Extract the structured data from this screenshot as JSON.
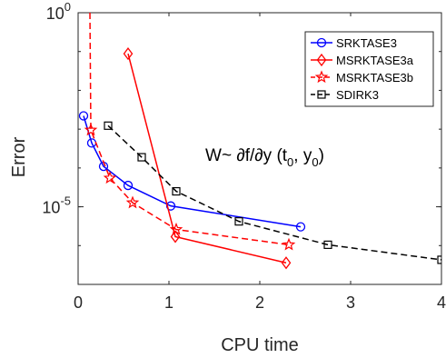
{
  "chart_data": {
    "type": "line",
    "xlabel": "CPU time",
    "ylabel": "Error",
    "xlim": [
      0,
      4
    ],
    "ylim": [
      1e-07,
      1
    ],
    "y_scale": "log",
    "grid": false,
    "legend_placement": "top-right",
    "x_ticks": [
      "0",
      "1",
      "2",
      "3",
      "4"
    ],
    "y_ticks": [
      {
        "base": "10",
        "exp": "0",
        "value": 1
      },
      {
        "base": "10",
        "exp": "-5",
        "value": 1e-05
      }
    ],
    "annotation": {
      "prefix": "W",
      "tilde": "~",
      "body": " ∂f/∂y (t",
      "sub0": "0",
      "mid": ", y",
      "sub1": "0",
      "suffix": ")"
    },
    "series": [
      {
        "name": "SRKTASE3",
        "color": "#0000ff",
        "dash": "solid",
        "marker": "circle",
        "x": [
          0.06,
          0.15,
          0.28,
          0.55,
          1.02,
          2.45
        ],
        "y": [
          0.0022,
          0.00044,
          0.00011,
          3.55e-05,
          1.05e-05,
          3.05e-06
        ]
      },
      {
        "name": "MSRKTASE3a",
        "color": "#ff0000",
        "dash": "solid",
        "marker": "diamond",
        "x": [
          0.55,
          1.07,
          2.29
        ],
        "y": [
          0.088,
          1.7e-06,
          3.6e-07
        ]
      },
      {
        "name": "MSRKTASE3b",
        "color": "#ff0000",
        "dash": "dashed",
        "marker": "star",
        "x": [
          0.13,
          0.14,
          0.35,
          0.6,
          1.08,
          2.32
        ],
        "y": [
          1,
          0.00095,
          5.5e-05,
          1.27e-05,
          2.6e-06,
          1.05e-06
        ]
      },
      {
        "name": "SDIRK3",
        "color": "#000000",
        "dash": "dashed",
        "marker": "square",
        "x": [
          0.33,
          0.7,
          1.08,
          1.77,
          2.75,
          4.0
        ],
        "y": [
          0.00123,
          0.000189,
          2.5e-05,
          4.2e-06,
          1.05e-06,
          4.3e-07
        ]
      }
    ]
  }
}
